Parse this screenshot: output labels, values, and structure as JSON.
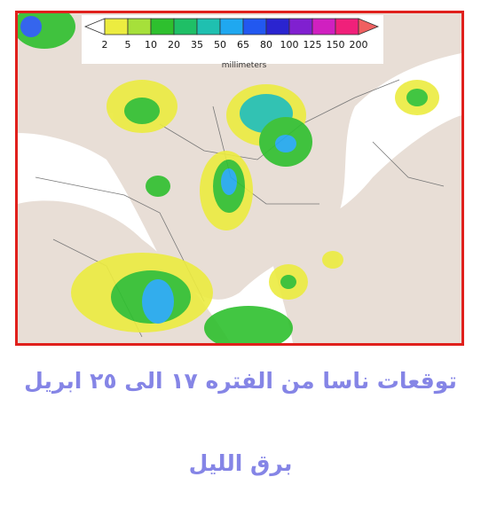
{
  "legend": {
    "labels": [
      "2",
      "5",
      "10",
      "20",
      "35",
      "50",
      "65",
      "80",
      "100",
      "125",
      "150",
      "200"
    ],
    "colors": [
      "#ecec40",
      "#a6e03a",
      "#2ec02e",
      "#1fbf66",
      "#1fc0b0",
      "#1fa8f0",
      "#2258f0",
      "#2a24d0",
      "#8020d0",
      "#d020c0",
      "#f0207a"
    ],
    "below_color": "#ffffff",
    "above_color": "#f06060",
    "unit": "millimeters"
  },
  "caption": {
    "line1": "توقعات ناسا من الفتره ١٧ الى ٢٥ ابريل",
    "line2": "برق الليل"
  }
}
